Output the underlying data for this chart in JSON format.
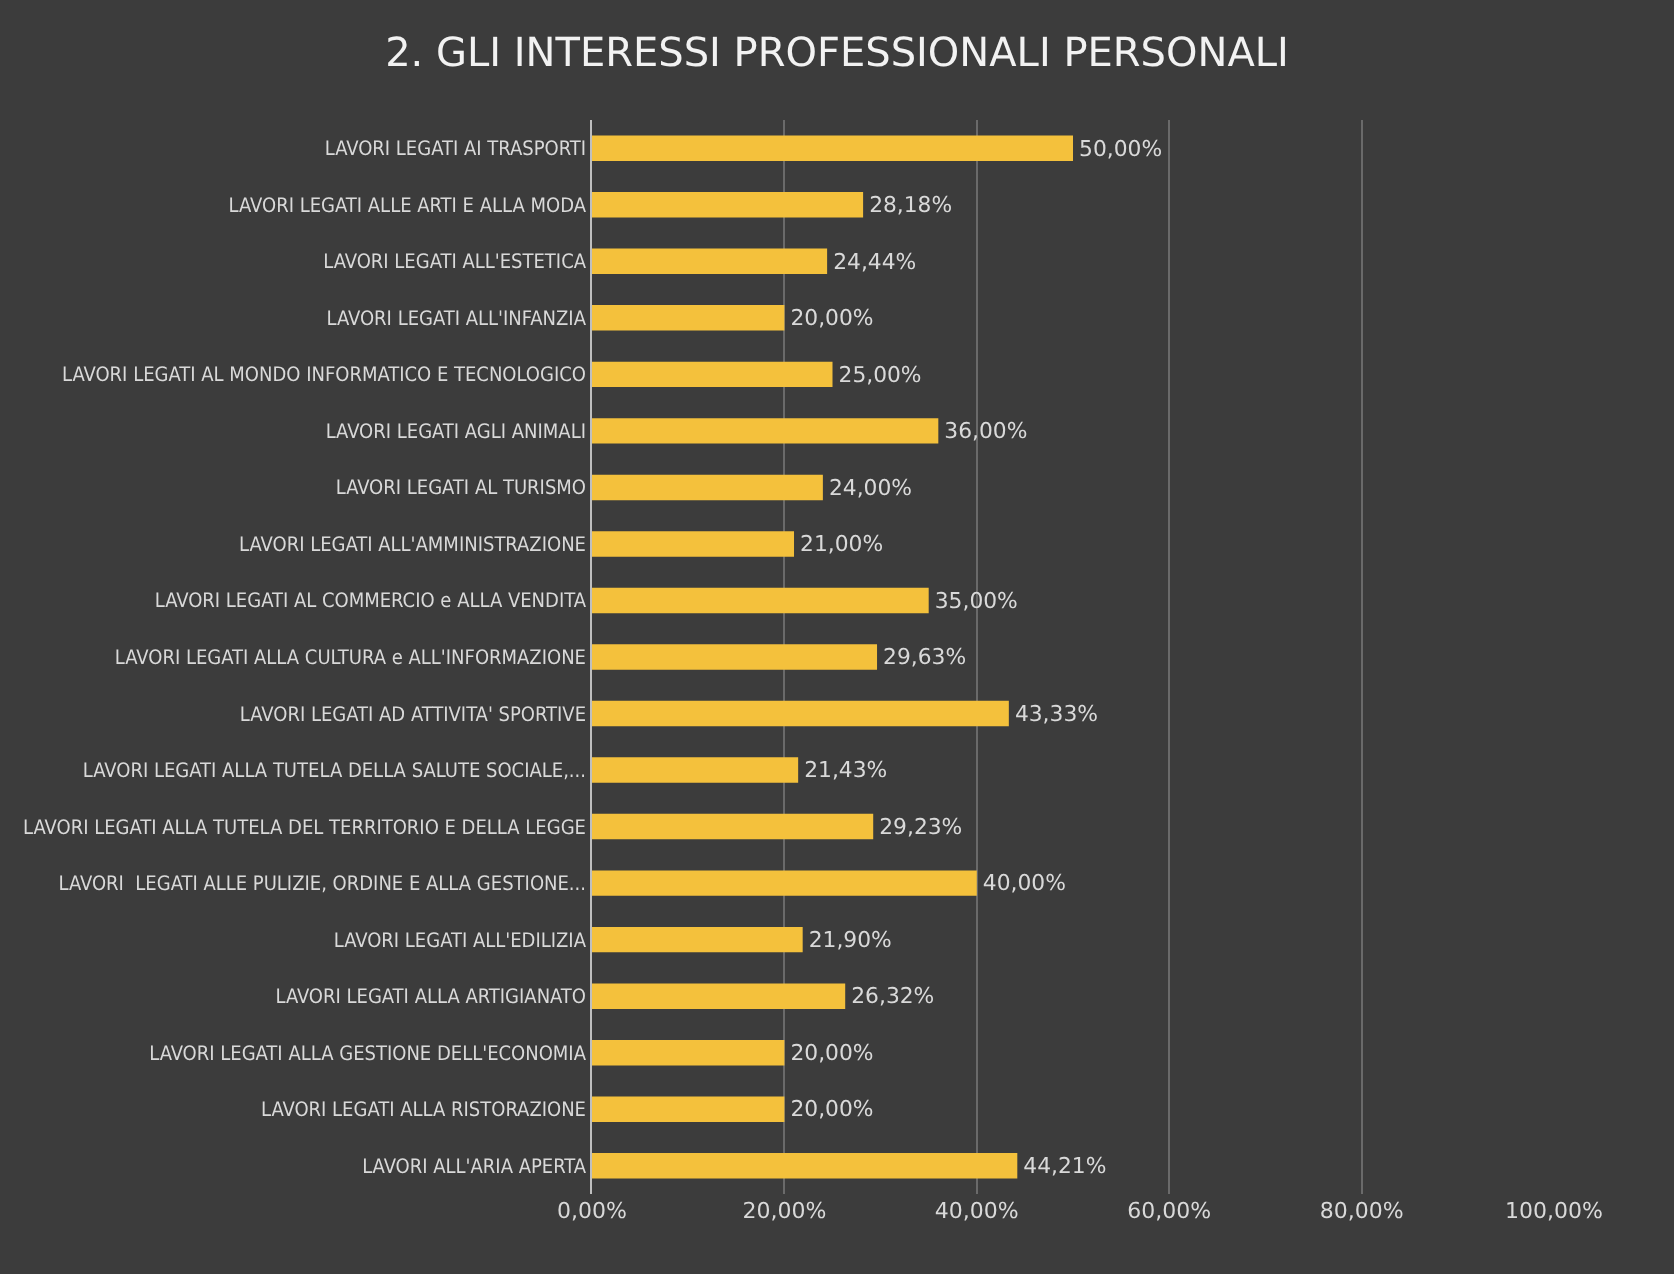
{
  "chart_data": {
    "type": "bar",
    "orientation": "horizontal",
    "title": "2. GLI INTERESSI PROFESSIONALI PERSONALI",
    "categories": [
      "LAVORI LEGATI AI TRASPORTI",
      "LAVORI LEGATI ALLE ARTI E ALLA MODA",
      "LAVORI LEGATI ALL'ESTETICA",
      "LAVORI LEGATI ALL'INFANZIA",
      "LAVORI LEGATI AL MONDO INFORMATICO E TECNOLOGICO",
      "LAVORI LEGATI AGLI ANIMALI",
      "LAVORI LEGATI AL TURISMO",
      "LAVORI LEGATI ALL'AMMINISTRAZIONE",
      "LAVORI LEGATI AL COMMERCIO e ALLA VENDITA",
      "LAVORI LEGATI ALLA CULTURA e ALL'INFORMAZIONE",
      "LAVORI LEGATI AD ATTIVITA' SPORTIVE",
      "LAVORI LEGATI ALLA TUTELA DELLA SALUTE SOCIALE,...",
      "LAVORI LEGATI ALLA TUTELA DEL TERRITORIO E DELLA LEGGE",
      "LAVORI  LEGATI ALLE PULIZIE, ORDINE E ALLA GESTIONE...",
      "LAVORI LEGATI ALL'EDILIZIA",
      "LAVORI LEGATI ALLA ARTIGIANATO",
      "LAVORI LEGATI ALLA GESTIONE DELL'ECONOMIA",
      "LAVORI LEGATI ALLA RISTORAZIONE",
      "LAVORI ALL'ARIA APERTA"
    ],
    "values": [
      50,
      28.18,
      24.44,
      20,
      25,
      36,
      24,
      21,
      35,
      29.63,
      43.33,
      21.43,
      29.23,
      40,
      21.9,
      26.32,
      20,
      20,
      44.21
    ],
    "value_labels": [
      "50,00%",
      "28,18%",
      "24,44%",
      "20,00%",
      "25,00%",
      "36,00%",
      "24,00%",
      "21,00%",
      "35,00%",
      "29,63%",
      "43,33%",
      "21,43%",
      "29,23%",
      "40,00%",
      "21,90%",
      "26,32%",
      "20,00%",
      "20,00%",
      "44,21%"
    ],
    "color": "#f4c13c",
    "xlim": [
      0,
      100
    ],
    "xticks": [
      {
        "value": 0,
        "label": "0,00%"
      },
      {
        "value": 20,
        "label": "20,00%"
      },
      {
        "value": 40,
        "label": "40,00%"
      },
      {
        "value": 60,
        "label": "60,00%"
      },
      {
        "value": 80,
        "label": "80,00%"
      },
      {
        "value": 100,
        "label": "100,00%"
      }
    ],
    "grid": "x"
  }
}
